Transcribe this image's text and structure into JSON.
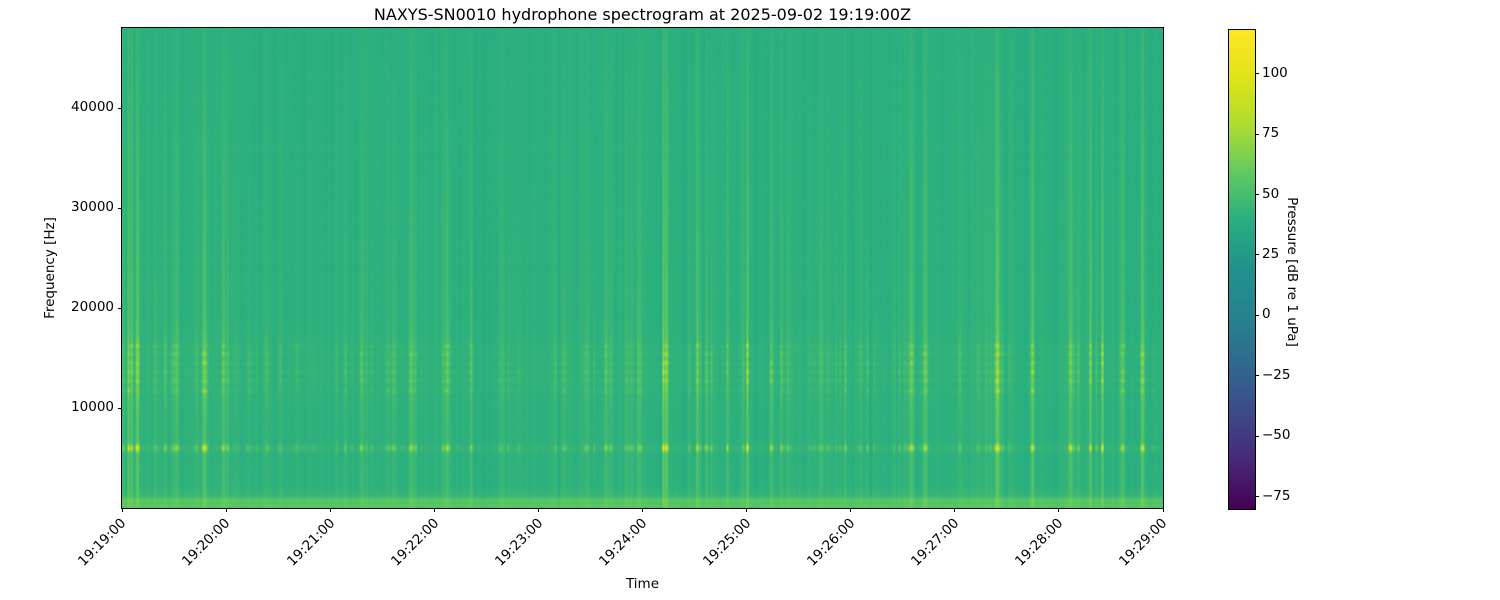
{
  "chart_data": {
    "type": "heatmap",
    "subtype": "spectrogram",
    "title": "NAXYS-SN0010 hydrophone spectrogram at 2025-09-02 19:19:00Z",
    "xlabel": "Time",
    "ylabel": "Frequency [Hz]",
    "colormap": "viridis",
    "grid": false,
    "legend": null,
    "x_ticks": {
      "labels": [
        "19:19:00",
        "19:20:00",
        "19:21:00",
        "19:22:00",
        "19:23:00",
        "19:24:00",
        "19:25:00",
        "19:26:00",
        "19:27:00",
        "19:28:00",
        "19:29:00"
      ],
      "seconds": [
        0,
        60,
        120,
        180,
        240,
        300,
        360,
        420,
        480,
        540,
        600
      ]
    },
    "xlim_seconds": [
      0,
      600
    ],
    "ylim_hz": [
      0,
      48000
    ],
    "y_ticks": {
      "values": [
        10000,
        20000,
        30000,
        40000
      ],
      "labels": [
        "10000",
        "20000",
        "30000",
        "40000"
      ]
    },
    "colorbar": {
      "label": "Pressure [dB re 1 uPa]",
      "tick_values": [
        100,
        75,
        50,
        25,
        0,
        -25,
        -50,
        -75
      ],
      "tick_labels": [
        "100",
        "75",
        "50",
        "25",
        "0",
        "−25",
        "−50",
        "−75"
      ],
      "vmin": -80,
      "vmax": 118
    },
    "content": {
      "background_level_db": 41,
      "tonal_line_hz": 6000,
      "tonal_line_desc": "bright intermittent tonal at ~6 kHz appearing as yellow dashes",
      "speckle_band_hz": [
        11000,
        16500
      ],
      "speckle_lines_hz": [
        11700,
        12700,
        13600,
        14500,
        15400,
        16200
      ],
      "speckle_band_center_hz": 13800,
      "low_band_hz": [
        0,
        1600
      ],
      "low_lines_hz": [
        260,
        760
      ],
      "transient_desc": "faint broadband vertical streaks every few seconds spanning 0-48 kHz, strongest between 2 and 18 kHz",
      "typical_peak_level_db": 100
    }
  }
}
